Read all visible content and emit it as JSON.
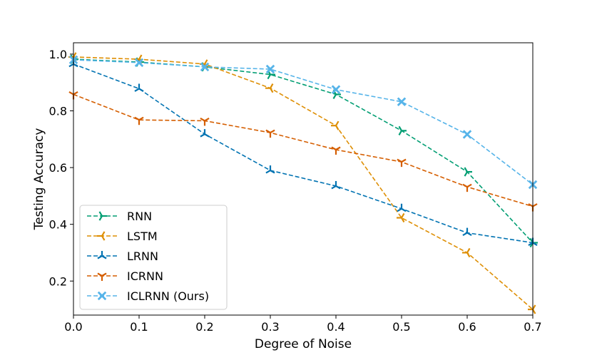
{
  "chart_data": {
    "type": "line",
    "title": "",
    "xlabel": "Degree of Noise",
    "ylabel": "Testing Accuracy",
    "x": [
      0.0,
      0.1,
      0.2,
      0.3,
      0.4,
      0.5,
      0.6,
      0.7
    ],
    "x_tick_labels": [
      "0.0",
      "0.1",
      "0.2",
      "0.3",
      "0.4",
      "0.5",
      "0.6",
      "0.7"
    ],
    "y_ticks": [
      0.2,
      0.4,
      0.6,
      0.8,
      1.0
    ],
    "y_tick_labels": [
      "0.2",
      "0.4",
      "0.6",
      "0.8",
      "1.0"
    ],
    "xlim": [
      0.0,
      0.7
    ],
    "ylim": [
      0.08,
      1.04
    ],
    "grid": false,
    "legend_position": "lower-left",
    "series": [
      {
        "name": "RNN",
        "color": "#029e73",
        "marker": "tri-right",
        "values": [
          0.982,
          0.972,
          0.955,
          0.928,
          0.858,
          0.73,
          0.585,
          0.335
        ]
      },
      {
        "name": "LSTM",
        "color": "#de8f05",
        "marker": "tri-left",
        "values": [
          0.99,
          0.982,
          0.965,
          0.88,
          0.748,
          0.423,
          0.3,
          0.1
        ]
      },
      {
        "name": "LRNN",
        "color": "#0173b2",
        "marker": "tri-up",
        "values": [
          0.965,
          0.878,
          0.718,
          0.59,
          0.535,
          0.455,
          0.37,
          0.335
        ]
      },
      {
        "name": "ICRNN",
        "color": "#d55e00",
        "marker": "tri-down",
        "values": [
          0.858,
          0.768,
          0.765,
          0.723,
          0.663,
          0.62,
          0.532,
          0.463
        ]
      },
      {
        "name": "ICLRNN (Ours)",
        "color": "#56b4e9",
        "marker": "x",
        "values": [
          0.98,
          0.97,
          0.955,
          0.947,
          0.875,
          0.832,
          0.717,
          0.54
        ]
      }
    ]
  }
}
